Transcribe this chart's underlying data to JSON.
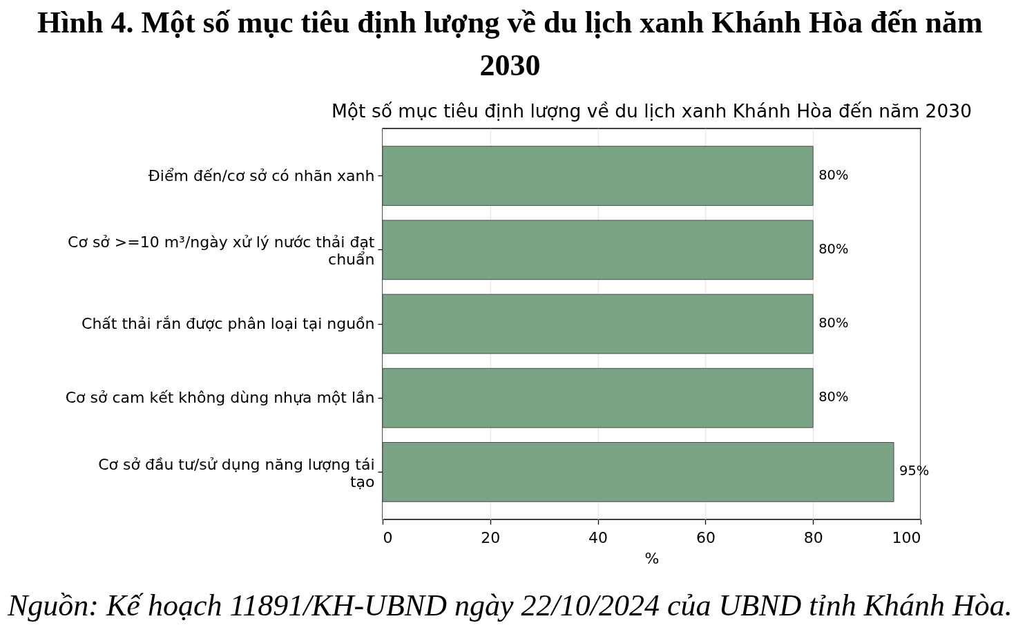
{
  "chart_data": {
    "type": "bar",
    "orientation": "horizontal",
    "title": "Hình 4. Một số mục tiêu định lượng về du lịch xanh Khánh Hòa đến năm 2030",
    "subtitle": "Một số mục tiêu định lượng về du lịch xanh Khánh Hòa đến năm 2030",
    "xlabel": "%",
    "categories": [
      "Điểm đến/cơ sở có nhãn xanh",
      "Cơ sở >=10 m³/ngày xử lý nước thải đạt\nchuẩn",
      "Chất thải rắn được phân loại tại nguồn",
      "Cơ sở cam kết không dùng nhựa một lần",
      "Cơ sở đầu tư/sử dụng năng lượng tái\ntạo"
    ],
    "values": [
      80,
      80,
      80,
      80,
      95
    ],
    "value_labels": [
      "80%",
      "80%",
      "80%",
      "80%",
      "95%"
    ],
    "color": "#7ba385",
    "xlim": [
      0,
      100
    ],
    "xticks": [
      0,
      20,
      40,
      60,
      80,
      100
    ],
    "grid": "x",
    "annotations": [
      "Nguồn: Kế hoạch 11891/KH-UBND ngày 22/10/2024 của UBND tỉnh Khánh Hòa."
    ]
  }
}
